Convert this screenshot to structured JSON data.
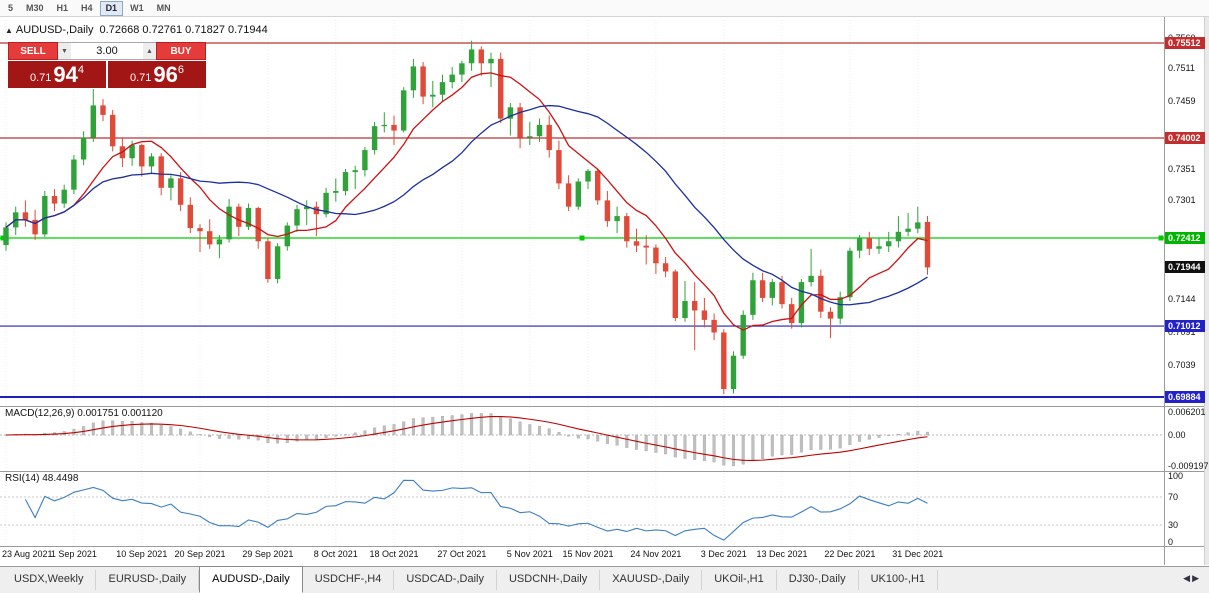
{
  "toolbar": {
    "timeframes": [
      "5",
      "M30",
      "H1",
      "H4",
      "D1",
      "W1",
      "MN"
    ],
    "active_timeframe": "D1"
  },
  "chart_header": {
    "collapse_icon": "▲",
    "symbol": "AUDUSD-,Daily",
    "ohlc": "0.72668 0.72761 0.71827 0.71944"
  },
  "trade_panel": {
    "sell_label": "SELL",
    "buy_label": "BUY",
    "volume": "3.00",
    "spin_down_icon": "▼",
    "spin_up_icon": "▲",
    "sell_price": {
      "base": "0.71",
      "big": "94",
      "sup": "4"
    },
    "buy_price": {
      "base": "0.71",
      "big": "96",
      "sup": "6"
    }
  },
  "colors": {
    "up": "#2fa33a",
    "down": "#e04a38",
    "ma_fast": "#cc1111",
    "ma_slow": "#1c2f9e",
    "level_red": "#b73333",
    "level_green": "#00cc00",
    "level_blue": "#1f1fbf",
    "badge_red": "#c22e2e",
    "badge_green": "#00b400",
    "badge_blue": "#2222c8",
    "badge_black": "#111111",
    "macd_hist": "#c0c0c0",
    "macd_signal": "#c00000",
    "rsi_line": "#3b7dc4"
  },
  "macd_panel": {
    "text": "MACD(12,26,9) 0.001751 0.001120",
    "axis_labels": [
      "0.006201",
      "0.00",
      "-0.009197"
    ],
    "axis_values": [
      0.006201,
      0,
      -0.009197
    ]
  },
  "rsi_panel": {
    "text": "RSI(14) 48.4498",
    "axis_labels": [
      "100",
      "70",
      "30",
      "0"
    ],
    "axis_values": [
      100,
      70,
      30,
      0
    ],
    "levels": [
      70,
      30
    ],
    "period": 14
  },
  "tabs": [
    "USDX,Weekly",
    "EURUSD-,Daily",
    "AUDUSD-,Daily",
    "USDCHF-,H4",
    "USDCAD-,Daily",
    "USDCNH-,Daily",
    "XAUUSD-,Daily",
    "UKOil-,H1",
    "DJ30-,Daily",
    "UK100-,H1"
  ],
  "active_tab": "AUDUSD-,Daily",
  "tab_arrows": "◀▶",
  "chart_data": {
    "type": "candlestick",
    "title": "AUDUSD-,Daily",
    "current_ohlc": {
      "open": 0.72668,
      "high": 0.72761,
      "low": 0.71827,
      "close": 0.71944
    },
    "y_ticks": [
      0.756,
      0.7511,
      0.7459,
      0.7351,
      0.7301,
      0.7144,
      0.7091,
      0.7039
    ],
    "horizontal_levels": [
      {
        "price": 0.75512,
        "label": "0.75512",
        "type": "red"
      },
      {
        "price": 0.74002,
        "label": "0.74002",
        "type": "red"
      },
      {
        "price": 0.72412,
        "label": "0.72412",
        "type": "green",
        "handles": true
      },
      {
        "price": 0.71944,
        "label": "0.71944",
        "type": "current"
      },
      {
        "price": 0.71012,
        "label": "0.71012",
        "type": "blue"
      },
      {
        "price": 0.69884,
        "label": "0.69884",
        "type": "blue",
        "width": 2
      }
    ],
    "overlays": {
      "ma_fast_period": 8,
      "ma_slow_period": 21
    },
    "macd_params": {
      "fast": 12,
      "slow": 26,
      "signal": 9
    },
    "x_labels": [
      {
        "label": "23 Aug 2021",
        "index": 0
      },
      {
        "label": "1 Sep 2021",
        "index": 7
      },
      {
        "label": "10 Sep 2021",
        "index": 14
      },
      {
        "label": "20 Sep 2021",
        "index": 20
      },
      {
        "label": "29 Sep 2021",
        "index": 27
      },
      {
        "label": "8 Oct 2021",
        "index": 34
      },
      {
        "label": "18 Oct 2021",
        "index": 40
      },
      {
        "label": "27 Oct 2021",
        "index": 47
      },
      {
        "label": "5 Nov 2021",
        "index": 54
      },
      {
        "label": "15 Nov 2021",
        "index": 60
      },
      {
        "label": "24 Nov 2021",
        "index": 67
      },
      {
        "label": "3 Dec 2021",
        "index": 74
      },
      {
        "label": "13 Dec 2021",
        "index": 80
      },
      {
        "label": "22 Dec 2021",
        "index": 87
      },
      {
        "label": "31 Dec 2021",
        "index": 94
      }
    ],
    "candles": [
      [
        0.723,
        0.7266,
        0.7221,
        0.7258
      ],
      [
        0.7258,
        0.7291,
        0.7246,
        0.7282
      ],
      [
        0.7282,
        0.7301,
        0.7259,
        0.727
      ],
      [
        0.727,
        0.7286,
        0.7238,
        0.7247
      ],
      [
        0.7247,
        0.7316,
        0.7243,
        0.7308
      ],
      [
        0.7308,
        0.7319,
        0.7284,
        0.7296
      ],
      [
        0.7296,
        0.7326,
        0.7289,
        0.7318
      ],
      [
        0.7318,
        0.7373,
        0.7311,
        0.7366
      ],
      [
        0.7366,
        0.7411,
        0.7357,
        0.7401
      ],
      [
        0.7401,
        0.7478,
        0.7394,
        0.7452
      ],
      [
        0.7452,
        0.7462,
        0.7427,
        0.7437
      ],
      [
        0.7437,
        0.7445,
        0.7379,
        0.7387
      ],
      [
        0.7387,
        0.7401,
        0.7354,
        0.7368
      ],
      [
        0.7368,
        0.7396,
        0.7356,
        0.7389
      ],
      [
        0.7389,
        0.7391,
        0.7339,
        0.7355
      ],
      [
        0.7355,
        0.7376,
        0.7344,
        0.7371
      ],
      [
        0.7371,
        0.7376,
        0.7309,
        0.7321
      ],
      [
        0.7321,
        0.7341,
        0.7301,
        0.7336
      ],
      [
        0.7336,
        0.7346,
        0.7284,
        0.7294
      ],
      [
        0.7294,
        0.7306,
        0.7249,
        0.7257
      ],
      [
        0.7257,
        0.7263,
        0.7219,
        0.7252
      ],
      [
        0.7252,
        0.7271,
        0.7224,
        0.7231
      ],
      [
        0.7231,
        0.7246,
        0.7209,
        0.7239
      ],
      [
        0.7239,
        0.7303,
        0.7234,
        0.7291
      ],
      [
        0.7291,
        0.7296,
        0.7244,
        0.7259
      ],
      [
        0.7259,
        0.7296,
        0.7254,
        0.7289
      ],
      [
        0.7289,
        0.7291,
        0.7224,
        0.7236
      ],
      [
        0.7236,
        0.7241,
        0.717,
        0.7176
      ],
      [
        0.7176,
        0.7233,
        0.7169,
        0.7228
      ],
      [
        0.7228,
        0.7266,
        0.7221,
        0.7261
      ],
      [
        0.7261,
        0.7294,
        0.7251,
        0.7287
      ],
      [
        0.7287,
        0.7301,
        0.7262,
        0.7291
      ],
      [
        0.7291,
        0.7299,
        0.7244,
        0.7279
      ],
      [
        0.7279,
        0.7321,
        0.7274,
        0.7313
      ],
      [
        0.7313,
        0.7336,
        0.7299,
        0.7316
      ],
      [
        0.7316,
        0.7351,
        0.7309,
        0.7346
      ],
      [
        0.7346,
        0.7356,
        0.7319,
        0.7349
      ],
      [
        0.7349,
        0.7386,
        0.7339,
        0.7381
      ],
      [
        0.7381,
        0.7426,
        0.7374,
        0.7419
      ],
      [
        0.7419,
        0.7441,
        0.7409,
        0.7421
      ],
      [
        0.7421,
        0.7436,
        0.7389,
        0.7412
      ],
      [
        0.7412,
        0.7481,
        0.7409,
        0.7476
      ],
      [
        0.7476,
        0.7526,
        0.7464,
        0.7514
      ],
      [
        0.7514,
        0.7521,
        0.7454,
        0.7466
      ],
      [
        0.7466,
        0.7491,
        0.7449,
        0.7469
      ],
      [
        0.7469,
        0.7501,
        0.7459,
        0.7489
      ],
      [
        0.7489,
        0.7513,
        0.7479,
        0.7501
      ],
      [
        0.7501,
        0.7523,
        0.7489,
        0.7519
      ],
      [
        0.7519,
        0.7555,
        0.7507,
        0.7541
      ],
      [
        0.7541,
        0.7546,
        0.7499,
        0.7519
      ],
      [
        0.7519,
        0.7536,
        0.7481,
        0.7526
      ],
      [
        0.7526,
        0.7536,
        0.7424,
        0.7431
      ],
      [
        0.7431,
        0.7456,
        0.7404,
        0.7449
      ],
      [
        0.7449,
        0.7456,
        0.7384,
        0.7401
      ],
      [
        0.7401,
        0.7426,
        0.7389,
        0.7403
      ],
      [
        0.7403,
        0.7431,
        0.7394,
        0.7421
      ],
      [
        0.7421,
        0.7436,
        0.7369,
        0.7381
      ],
      [
        0.7381,
        0.7396,
        0.7319,
        0.7328
      ],
      [
        0.7328,
        0.7341,
        0.7284,
        0.7291
      ],
      [
        0.7291,
        0.7336,
        0.7286,
        0.7331
      ],
      [
        0.7331,
        0.7351,
        0.7319,
        0.7348
      ],
      [
        0.7348,
        0.7351,
        0.7294,
        0.7301
      ],
      [
        0.7301,
        0.7316,
        0.7259,
        0.7268
      ],
      [
        0.7268,
        0.7291,
        0.7249,
        0.7276
      ],
      [
        0.7276,
        0.7281,
        0.7226,
        0.7236
      ],
      [
        0.7236,
        0.7256,
        0.7219,
        0.7229
      ],
      [
        0.7229,
        0.7246,
        0.7199,
        0.7226
      ],
      [
        0.7226,
        0.7231,
        0.7184,
        0.7201
      ],
      [
        0.7201,
        0.7211,
        0.7179,
        0.7188
      ],
      [
        0.7188,
        0.7191,
        0.7109,
        0.7114
      ],
      [
        0.7114,
        0.7173,
        0.7108,
        0.7141
      ],
      [
        0.7141,
        0.7171,
        0.7063,
        0.7126
      ],
      [
        0.7126,
        0.7146,
        0.7099,
        0.7111
      ],
      [
        0.7111,
        0.7121,
        0.7079,
        0.7091
      ],
      [
        0.7091,
        0.7096,
        0.6993,
        0.7001
      ],
      [
        0.7001,
        0.7061,
        0.6994,
        0.7054
      ],
      [
        0.7054,
        0.7126,
        0.7049,
        0.7119
      ],
      [
        0.7119,
        0.7186,
        0.7111,
        0.7174
      ],
      [
        0.7174,
        0.7186,
        0.7139,
        0.7146
      ],
      [
        0.7146,
        0.7176,
        0.7134,
        0.7171
      ],
      [
        0.7171,
        0.7181,
        0.7129,
        0.7136
      ],
      [
        0.7136,
        0.7146,
        0.7097,
        0.7106
      ],
      [
        0.7106,
        0.7176,
        0.7099,
        0.7171
      ],
      [
        0.7171,
        0.7224,
        0.7164,
        0.7181
      ],
      [
        0.7181,
        0.7191,
        0.7114,
        0.7124
      ],
      [
        0.7124,
        0.7131,
        0.7082,
        0.7113
      ],
      [
        0.7113,
        0.7156,
        0.7104,
        0.7147
      ],
      [
        0.7147,
        0.7226,
        0.7141,
        0.7221
      ],
      [
        0.7221,
        0.7246,
        0.7209,
        0.7241
      ],
      [
        0.7241,
        0.7251,
        0.7214,
        0.7224
      ],
      [
        0.7224,
        0.7241,
        0.7216,
        0.7228
      ],
      [
        0.7228,
        0.7251,
        0.7219,
        0.7236
      ],
      [
        0.7236,
        0.7276,
        0.7226,
        0.7251
      ],
      [
        0.7251,
        0.7281,
        0.7244,
        0.7256
      ],
      [
        0.7256,
        0.7291,
        0.7249,
        0.7266
      ],
      [
        0.72668,
        0.72761,
        0.71827,
        0.71944
      ]
    ]
  }
}
